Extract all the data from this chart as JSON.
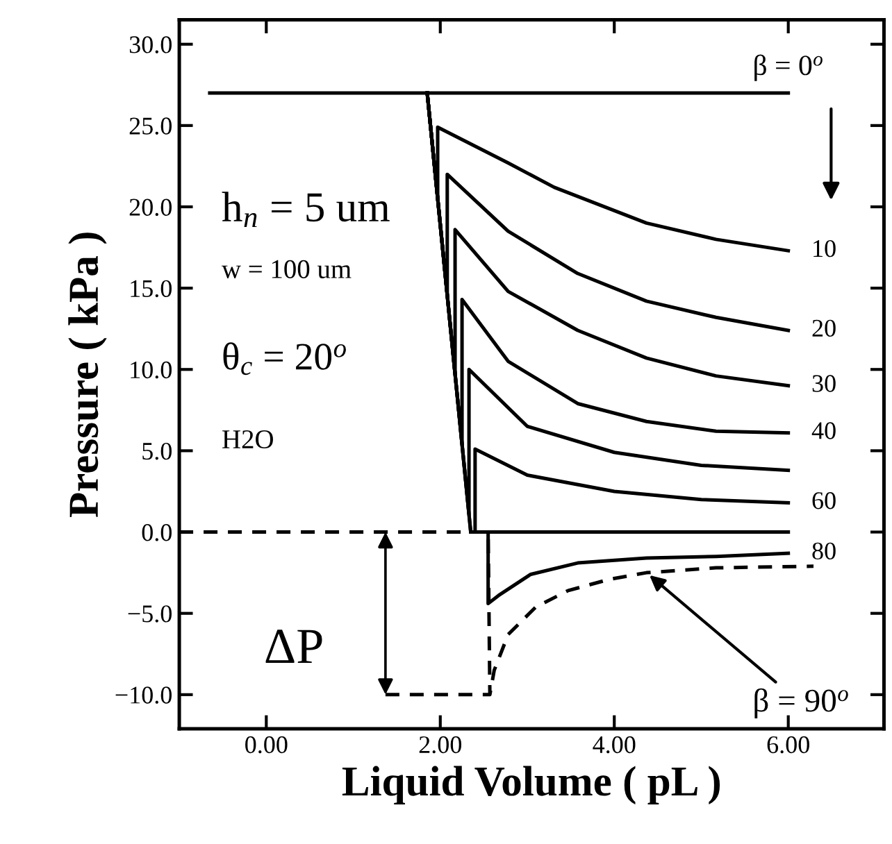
{
  "chart_data": {
    "type": "line",
    "xlabel": "Liquid Volume ( pL )",
    "ylabel": "Pressure ( kPa )",
    "xlim": [
      -1.0,
      7.1
    ],
    "ylim": [
      -12.1,
      31.5
    ],
    "xticks": [
      {
        "value": 0,
        "label": "0.00"
      },
      {
        "value": 2,
        "label": "2.00"
      },
      {
        "value": 4,
        "label": "4.00"
      },
      {
        "value": 6,
        "label": "6.00"
      }
    ],
    "yticks": [
      {
        "value": -10,
        "label": "−10.0"
      },
      {
        "value": -5,
        "label": "−5.0"
      },
      {
        "value": 0,
        "label": "0.0"
      },
      {
        "value": 5,
        "label": "5.0"
      },
      {
        "value": 10,
        "label": "10.0"
      },
      {
        "value": 15,
        "label": "15.0"
      },
      {
        "value": 20,
        "label": "20.0"
      },
      {
        "value": 25,
        "label": "25.0"
      },
      {
        "value": 30,
        "label": "30.0"
      }
    ],
    "grid": false,
    "legend": "right",
    "marker": "none",
    "series": [
      {
        "name": "β = 0$^{o}$",
        "color": "#000000",
        "line_style": "solid",
        "x": [
          -0.65,
          6.0
        ],
        "values": [
          27.0,
          27.0
        ]
      },
      {
        "name": "10",
        "color": "#000000",
        "line_style": "solid",
        "x": [
          1.85,
          1.97,
          1.97,
          2.78,
          3.31,
          4.37,
          5.17,
          6.0
        ],
        "values": [
          27.0,
          20.5,
          24.9,
          22.7,
          21.2,
          19.0,
          18.0,
          17.3
        ]
      },
      {
        "name": "20",
        "color": "#000000",
        "line_style": "solid",
        "x": [
          1.85,
          2.08,
          2.08,
          2.78,
          3.58,
          4.37,
          5.17,
          6.0
        ],
        "values": [
          27.0,
          14.6,
          22.0,
          18.5,
          15.9,
          14.2,
          13.2,
          12.4
        ]
      },
      {
        "name": "30",
        "color": "#000000",
        "line_style": "solid",
        "x": [
          1.85,
          2.17,
          2.17,
          2.78,
          3.58,
          4.37,
          5.17,
          6.0
        ],
        "values": [
          27.0,
          9.7,
          18.6,
          14.8,
          12.4,
          10.7,
          9.6,
          9.0
        ]
      },
      {
        "name": "40",
        "color": "#000000",
        "line_style": "solid",
        "x": [
          1.85,
          2.25,
          2.25,
          2.78,
          3.58,
          4.37,
          5.17,
          6.0
        ],
        "values": [
          27.0,
          5.4,
          14.3,
          10.5,
          7.9,
          6.8,
          6.2,
          6.1
        ]
      },
      {
        "color": "#000000",
        "line_style": "solid",
        "x": [
          1.85,
          2.33,
          2.33,
          3.0,
          4.0,
          5.0,
          6.0
        ],
        "values": [
          27.0,
          1.1,
          10.0,
          6.5,
          4.9,
          4.1,
          3.8
        ]
      },
      {
        "name": "60",
        "color": "#000000",
        "line_style": "solid",
        "x": [
          1.85,
          2.35,
          2.4,
          2.4,
          3.0,
          4.0,
          5.0,
          6.0
        ],
        "values": [
          27.0,
          0.0,
          0.0,
          5.1,
          3.5,
          2.5,
          2.0,
          1.8
        ]
      },
      {
        "color": "#000000",
        "line_style": "solid",
        "x": [
          1.85,
          2.35,
          6.0
        ],
        "values": [
          27.0,
          0.0,
          0.0
        ]
      },
      {
        "name": "80",
        "color": "#000000",
        "line_style": "solid",
        "x": [
          2.35,
          2.55,
          2.55,
          2.67,
          3.04,
          3.58,
          4.37,
          5.17,
          6.0
        ],
        "values": [
          0.0,
          0.0,
          -4.4,
          -3.9,
          -2.6,
          -1.9,
          -1.6,
          -1.5,
          -1.3
        ]
      },
      {
        "color": "#000000",
        "line_style": "dashed",
        "x": [
          -1.0,
          2.55,
          2.57,
          2.62,
          2.78,
          3.1,
          3.47,
          3.95,
          4.37,
          5.17,
          6.29
        ],
        "values": [
          0.0,
          0.0,
          -10.0,
          -8.5,
          -6.3,
          -4.6,
          -3.6,
          -2.9,
          -2.5,
          -2.2,
          -2.1
        ]
      },
      {
        "color": "#000000",
        "line_style": "dashed",
        "x": [
          1.37,
          2.57
        ],
        "values": [
          -10.0,
          -10.0
        ]
      }
    ],
    "annotations": [
      "h$_{n}$ = 5 um",
      "w = 100 um",
      "θ$_{c}$ = 20$^{o}$",
      "H2O",
      "ΔP",
      {
        "text": "β = 90$^{o}$",
        "x": 4.37,
        "y": -2.5
      }
    ]
  }
}
